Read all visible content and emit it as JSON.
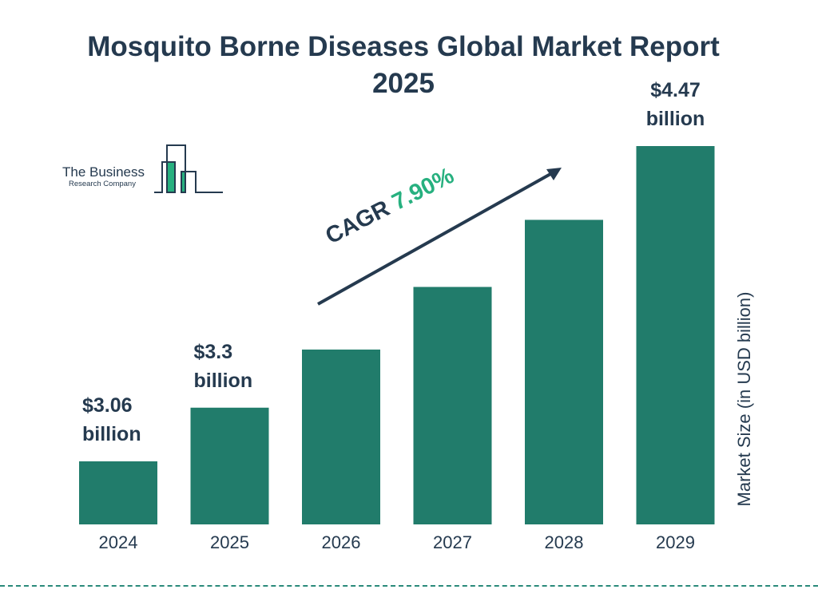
{
  "chart_data": {
    "type": "bar",
    "title": "Mosquito Borne Diseases Global Market Report 2025",
    "categories": [
      "2024",
      "2025",
      "2026",
      "2027",
      "2028",
      "2029"
    ],
    "values": [
      3.06,
      3.3,
      3.56,
      3.84,
      4.14,
      4.47
    ],
    "data_labels": {
      "0": [
        "$3.06",
        "billion"
      ],
      "1": [
        "$3.3",
        "billion"
      ],
      "5": [
        "$4.47",
        "billion"
      ]
    },
    "ylabel": "Market Size (in USD billion)",
    "xlabel": "",
    "bar_color": "#217c6b",
    "grid": false,
    "annotation": {
      "prefix": "CAGR ",
      "value": "7.90%",
      "value_color": "#27b07f"
    }
  },
  "logo": {
    "line1": "The Business",
    "line2": "Research Company"
  }
}
